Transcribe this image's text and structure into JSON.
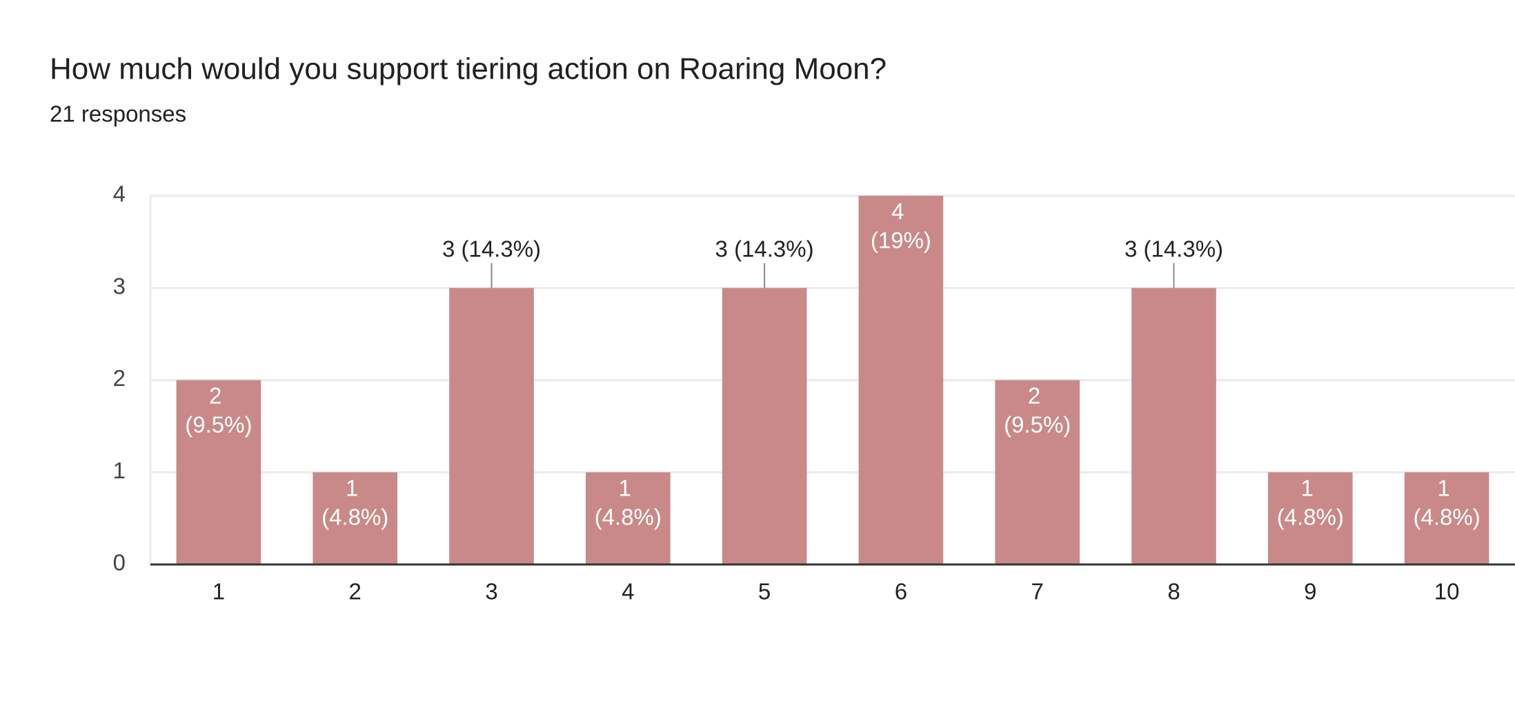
{
  "chart_data": {
    "type": "bar",
    "title": "How much would you support tiering action on Roaring Moon?",
    "subtitle": "21 responses",
    "categories": [
      "1",
      "2",
      "3",
      "4",
      "5",
      "6",
      "7",
      "8",
      "9",
      "10"
    ],
    "values": [
      2,
      1,
      3,
      1,
      3,
      4,
      2,
      3,
      1,
      1
    ],
    "value_labels": [
      "2 (9.5%)",
      "1 (4.8%)",
      "3 (14.3%)",
      "1 (4.8%)",
      "3 (14.3%)",
      "4 (19%)",
      "2 (9.5%)",
      "3 (14.3%)",
      "1 (4.8%)",
      "1 (4.8%)"
    ],
    "color": "#c98989",
    "ylim": [
      0,
      4
    ],
    "yticks": [
      0,
      1,
      2,
      3,
      4
    ],
    "grid": true
  }
}
